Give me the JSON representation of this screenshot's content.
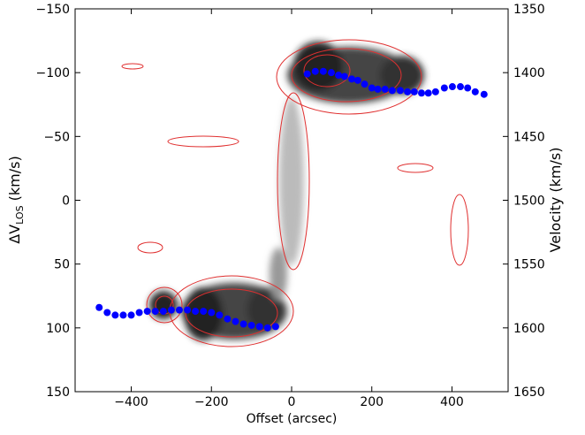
{
  "chart_data": {
    "type": "scatter",
    "xlabel": "Offset (arcsec)",
    "ylabel": [
      "ΔV",
      "LOS",
      " (km/s)"
    ],
    "y2label": "Velocity (km/s)",
    "xlim": [
      -540,
      540
    ],
    "ylim": [
      -150,
      150
    ],
    "y_inverted": true,
    "xticks": [
      {
        "value": -400,
        "label": "−400"
      },
      {
        "value": -200,
        "label": "−200"
      },
      0,
      200,
      400
    ],
    "yticks": [
      {
        "value": -150,
        "label": "−150"
      },
      {
        "value": -100,
        "label": "−100"
      },
      {
        "value": -50,
        "label": "−50"
      },
      0,
      50,
      100,
      150
    ],
    "y2lim": [
      1350,
      1650
    ],
    "y2ticks": [
      1350,
      1400,
      1450,
      1500,
      1550,
      1600,
      1650
    ],
    "series": [
      {
        "color": "#0000ff",
        "x": [
          39,
          59,
          79,
          99,
          117,
          132,
          150,
          165,
          182,
          200,
          215,
          233,
          251,
          271,
          289,
          306,
          324,
          341,
          359,
          381,
          401,
          421,
          439,
          458,
          480
        ],
        "values": [
          -99,
          -101,
          -101,
          -100,
          -98,
          -97,
          -95,
          -94,
          -91,
          -88,
          -87,
          -87,
          -86,
          -86,
          -85,
          -85,
          -84,
          -84,
          -85,
          -88,
          -89,
          -89,
          -88,
          -85,
          -83
        ]
      },
      {
        "color": "#0000ff",
        "x": [
          -480,
          -460,
          -440,
          -420,
          -400,
          -380,
          -360,
          -340,
          -320,
          -300,
          -280,
          -260,
          -240,
          -220,
          -200,
          -180,
          -160,
          -140,
          -120,
          -100,
          -80,
          -60,
          -40
        ],
        "values": [
          84,
          88,
          90,
          90,
          90,
          88,
          87,
          87,
          87,
          86,
          86,
          86,
          87,
          87,
          88,
          90,
          93,
          95,
          97,
          98,
          99,
          100,
          99
        ]
      }
    ]
  }
}
